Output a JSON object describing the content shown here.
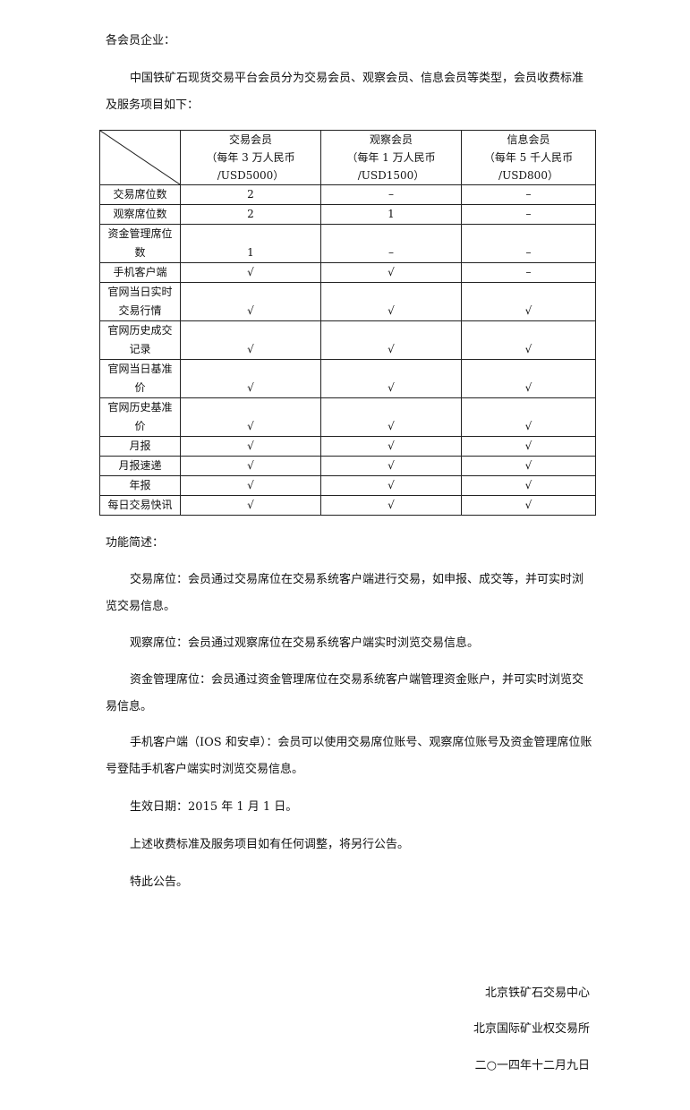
{
  "salutation": "各会员企业：",
  "intro": "中国铁矿石现货交易平台会员分为交易会员、观察会员、信息会员等类型，会员收费标准及服务项目如下：",
  "table": {
    "columns": [
      {
        "name": "交易会员",
        "fee": "（每年 3 万人民币",
        "usd": "/USD5000）"
      },
      {
        "name": "观察会员",
        "fee": "（每年 1 万人民币",
        "usd": "/USD1500）"
      },
      {
        "name": "信息会员",
        "fee": "（每年 5 千人民币",
        "usd": "/USD800）"
      }
    ],
    "rows": [
      {
        "label": "交易席位数",
        "values": [
          "2",
          "–",
          "–"
        ]
      },
      {
        "label": "观察席位数",
        "values": [
          "2",
          "1",
          "–"
        ]
      },
      {
        "label": "资金管理席位数",
        "values": [
          "1",
          "–",
          "–"
        ]
      },
      {
        "label": "手机客户端",
        "values": [
          "√",
          "√",
          "–"
        ]
      },
      {
        "label": "官网当日实时交易行情",
        "values": [
          "√",
          "√",
          "√"
        ]
      },
      {
        "label": "官网历史成交记录",
        "values": [
          "√",
          "√",
          "√"
        ]
      },
      {
        "label": "官网当日基准价",
        "values": [
          "√",
          "√",
          "√"
        ]
      },
      {
        "label": "官网历史基准价",
        "values": [
          "√",
          "√",
          "√"
        ]
      },
      {
        "label": "月报",
        "values": [
          "√",
          "√",
          "√"
        ]
      },
      {
        "label": "月报速递",
        "values": [
          "√",
          "√",
          "√"
        ]
      },
      {
        "label": "年报",
        "values": [
          "√",
          "√",
          "√"
        ]
      },
      {
        "label": "每日交易快讯",
        "values": [
          "√",
          "√",
          "√"
        ]
      }
    ]
  },
  "functions_heading": "功能简述：",
  "paragraphs": [
    "交易席位：会员通过交易席位在交易系统客户端进行交易，如申报、成交等，并可实时浏览交易信息。",
    "观察席位：会员通过观察席位在交易系统客户端实时浏览交易信息。",
    "资金管理席位：会员通过资金管理席位在交易系统客户端管理资金账户，并可实时浏览交易信息。",
    "手机客户端（IOS 和安卓）：会员可以使用交易席位账号、观察席位账号及资金管理席位账号登陆手机客户端实时浏览交易信息。",
    "生效日期：2015 年 1 月 1 日。",
    "上述收费标准及服务项目如有任何调整，将另行公告。",
    "特此公告。"
  ],
  "signature": {
    "org1": "北京铁矿石交易中心",
    "org2": "北京国际矿业权交易所",
    "date": "二○一四年十二月九日"
  }
}
